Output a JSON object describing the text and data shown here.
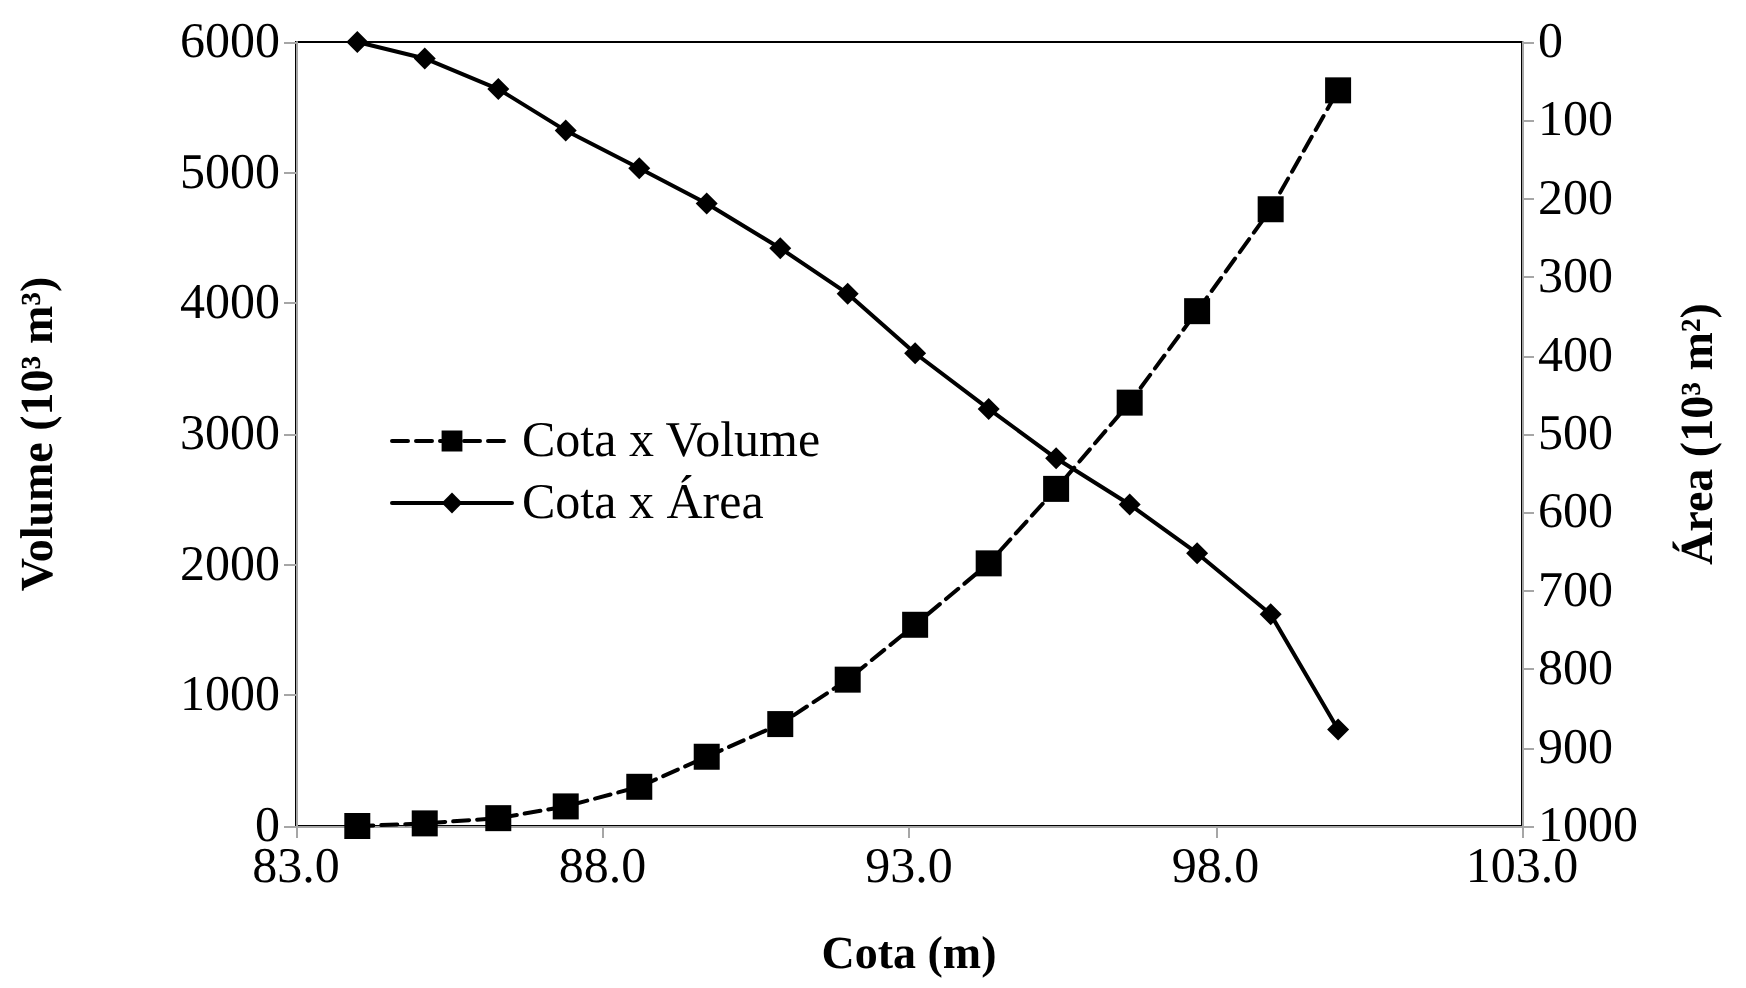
{
  "chart_data": {
    "type": "line",
    "xlabel": "Cota (m)",
    "ylabel": "Volume (10³ m³)",
    "y2label": "Área (10³ m²)",
    "x": [
      84.0,
      85.1,
      86.3,
      87.4,
      88.6,
      89.7,
      90.9,
      92.0,
      93.1,
      94.3,
      95.4,
      96.6,
      97.7,
      98.9,
      100.0
    ],
    "series": [
      {
        "name": "Cota x Volume",
        "color": "#000000",
        "marker": "square",
        "line_style": "dashed",
        "values": [
          0,
          20,
          60,
          150,
          300,
          530,
          780,
          1120,
          1540,
          2010,
          2580,
          3240,
          3940,
          4720,
          5630
        ]
      },
      {
        "name": "Cota x Área",
        "color": "#000000",
        "marker": "diamond",
        "line_style": "solid",
        "axis": "y2",
        "values": [
          0,
          21,
          60,
          113,
          161,
          206,
          263,
          321,
          397,
          468,
          531,
          590,
          652,
          730,
          877
        ]
      }
    ],
    "xlim": [
      83,
      103
    ],
    "xticks": [
      {
        "value": 83,
        "label": "83.0"
      },
      {
        "value": 88,
        "label": "88.0"
      },
      {
        "value": 93,
        "label": "93.0"
      },
      {
        "value": 98,
        "label": "98.0"
      },
      {
        "value": 103,
        "label": "103.0"
      }
    ],
    "ylim": [
      0,
      6000
    ],
    "yticks": [
      0,
      1000,
      2000,
      3000,
      4000,
      5000,
      6000
    ],
    "y2lim": [
      1000,
      0
    ],
    "y2ticks": [
      0,
      100,
      200,
      300,
      400,
      500,
      600,
      700,
      800,
      900,
      1000
    ],
    "grid": false,
    "legend": "left"
  }
}
